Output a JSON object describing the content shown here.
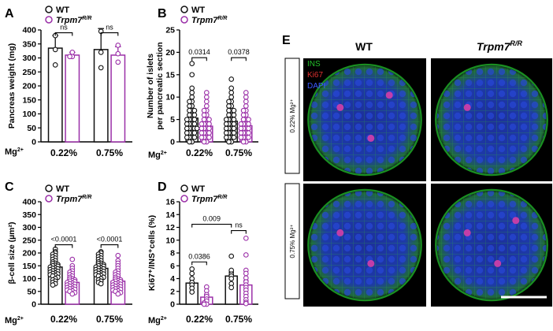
{
  "colors": {
    "wt": "#111111",
    "mut": "#9b30a8",
    "ins": "#22c02a",
    "ki67": "#e03030",
    "dapi": "#3a5aff"
  },
  "panel_letters": {
    "a": "A",
    "b": "B",
    "c": "C",
    "d": "D",
    "e": "E"
  },
  "legend": {
    "wt": "WT",
    "mut": "Trpm7",
    "mut_sup": "R/R"
  },
  "mg_label": "Mg",
  "mg_sup": "2+",
  "chart_data": [
    {
      "id": "A",
      "type": "bar",
      "ylabel": "Pancreas weight (mg)",
      "ylim": [
        0,
        400
      ],
      "yticks": [
        0,
        50,
        100,
        150,
        200,
        250,
        300,
        350,
        400
      ],
      "categories": [
        "0.22%",
        "0.75%"
      ],
      "series": [
        {
          "name": "WT",
          "means": [
            335,
            330
          ],
          "errors": [
            45,
            75
          ],
          "points": [
            [
              380,
              330,
              275
            ],
            [
              395,
              320,
              265
            ]
          ]
        },
        {
          "name": "Trpm7 R/R",
          "means": [
            310,
            310
          ],
          "errors": [
            10,
            30
          ],
          "points": [
            [
              320,
              305,
              305
            ],
            [
              345,
              315,
              285
            ]
          ]
        }
      ],
      "annotations": [
        {
          "category": 0,
          "text": "ns"
        },
        {
          "category": 1,
          "text": "ns"
        }
      ]
    },
    {
      "id": "B",
      "type": "bar",
      "ylabel": "Number of islets per pancreatic section",
      "ylim": [
        0,
        25
      ],
      "yticks": [
        0,
        5,
        10,
        15,
        20,
        25
      ],
      "categories": [
        "0.22%",
        "0.75%"
      ],
      "series": [
        {
          "name": "WT",
          "means": [
            5.3,
            4.6
          ],
          "errors": [
            0.5,
            0.5
          ],
          "points": [
            [
              17.5,
              15,
              12,
              11,
              10,
              9,
              9,
              8,
              8,
              7,
              7,
              7,
              6,
              6,
              6,
              5,
              5,
              5,
              5,
              4,
              4,
              4,
              4,
              3,
              3,
              3,
              3,
              3,
              2,
              2,
              2,
              2,
              1,
              1,
              1,
              1,
              0,
              0
            ],
            [
              14,
              12,
              11,
              10,
              9,
              9,
              8,
              8,
              7,
              7,
              7,
              6,
              6,
              6,
              5,
              5,
              5,
              5,
              4,
              4,
              4,
              4,
              3,
              3,
              3,
              3,
              2,
              2,
              2,
              2,
              1,
              1,
              1,
              1,
              0,
              0
            ]
          ]
        },
        {
          "name": "Trpm7 R/R",
          "means": [
            3.5,
            3.6
          ],
          "errors": [
            0.4,
            0.4
          ],
          "points": [
            [
              11,
              10,
              9,
              8,
              7,
              7,
              6,
              6,
              5,
              5,
              5,
              4,
              4,
              4,
              4,
              3,
              3,
              3,
              3,
              2,
              2,
              2,
              2,
              1,
              1,
              1,
              1,
              0,
              0
            ],
            [
              11,
              10,
              9,
              8,
              7,
              7,
              6,
              6,
              5,
              5,
              5,
              4,
              4,
              4,
              4,
              3,
              3,
              3,
              3,
              2,
              2,
              2,
              2,
              1,
              1,
              1,
              1,
              0,
              0
            ]
          ]
        }
      ],
      "annotations": [
        {
          "category": 0,
          "text": "0.0314"
        },
        {
          "category": 1,
          "text": "0.0378"
        }
      ]
    },
    {
      "id": "C",
      "type": "bar",
      "ylabel": "β-cell size (µm²)",
      "ylim": [
        0,
        400
      ],
      "yticks": [
        0,
        50,
        100,
        150,
        200,
        250,
        300,
        350,
        400
      ],
      "categories": [
        "0.22%",
        "0.75%"
      ],
      "series": [
        {
          "name": "WT",
          "means": [
            145,
            140
          ],
          "errors": [
            5,
            5
          ],
          "points": [
            [
              215,
              205,
              200,
              195,
              190,
              185,
              180,
              175,
              170,
              165,
              160,
              158,
              155,
              152,
              150,
              148,
              145,
              142,
              140,
              138,
              135,
              132,
              130,
              128,
              125,
              122,
              120,
              118,
              115,
              112,
              110,
              105,
              100,
              95,
              90,
              85,
              80,
              75
            ],
            [
              205,
              200,
              195,
              190,
              185,
              180,
              175,
              170,
              165,
              160,
              158,
              155,
              152,
              150,
              148,
              145,
              142,
              140,
              138,
              135,
              132,
              130,
              128,
              125,
              122,
              120,
              118,
              115,
              112,
              110,
              105,
              100,
              95,
              90,
              85,
              80
            ]
          ]
        },
        {
          "name": "Trpm7 R/R",
          "means": [
            85,
            90
          ],
          "errors": [
            5,
            5
          ],
          "points": [
            [
              175,
              150,
              140,
              130,
              125,
              120,
              115,
              110,
              105,
              100,
              98,
              95,
              92,
              90,
              88,
              85,
              82,
              80,
              78,
              75,
              72,
              70,
              68,
              65,
              62,
              60,
              58,
              55,
              52,
              50,
              45,
              40
            ],
            [
              190,
              170,
              160,
              150,
              140,
              130,
              125,
              120,
              115,
              110,
              105,
              100,
              98,
              95,
              92,
              90,
              88,
              85,
              82,
              80,
              78,
              75,
              72,
              70,
              68,
              65,
              62,
              60,
              58,
              55,
              52,
              50,
              45,
              40
            ]
          ]
        }
      ],
      "annotations": [
        {
          "category": 0,
          "text": "<0.0001"
        },
        {
          "category": 1,
          "text": "<0.0001"
        }
      ]
    },
    {
      "id": "D",
      "type": "bar",
      "ylabel": "Ki67⁺/INS⁺cells (%)",
      "ylim": [
        0,
        16
      ],
      "yticks": [
        0,
        2,
        4,
        6,
        8,
        10,
        12,
        14,
        16
      ],
      "categories": [
        "0.22%",
        "0.75%"
      ],
      "series": [
        {
          "name": "WT",
          "means": [
            3.3,
            4.4
          ],
          "errors": [
            0.6,
            0.6
          ],
          "points": [
            [
              5.5,
              4.8,
              4.0,
              3.4,
              3.0,
              2.5,
              1.9
            ],
            [
              7.5,
              5.3,
              4.7,
              4.4,
              4.0,
              3.2,
              2.6
            ]
          ]
        },
        {
          "name": "Trpm7 R/R",
          "means": [
            1.1,
            3.0
          ],
          "errors": [
            0.3,
            0.7
          ],
          "points": [
            [
              2.7,
              2.1,
              1.5,
              1.2,
              0.8,
              0.5,
              0.2,
              0,
              0
            ],
            [
              10.3,
              7.7,
              5.3,
              4.8,
              4.1,
              3.5,
              3.0,
              2.6,
              2.2,
              1.7,
              1.2,
              0.7,
              0.3,
              0.1
            ]
          ]
        }
      ],
      "annotations": [
        {
          "category": 0,
          "text": "0.0386"
        },
        {
          "category": 1,
          "text": "ns"
        },
        {
          "category": "between-wt",
          "text": "0.009"
        }
      ]
    }
  ],
  "panel_e": {
    "col_labels": [
      "WT",
      "Trpm7"
    ],
    "col_label_sup": "R/R",
    "row_labels": [
      "0.22% Mg²⁺",
      "0.75% Mg²⁺"
    ],
    "channels": [
      "INS",
      "Ki67",
      "DAPI"
    ]
  }
}
